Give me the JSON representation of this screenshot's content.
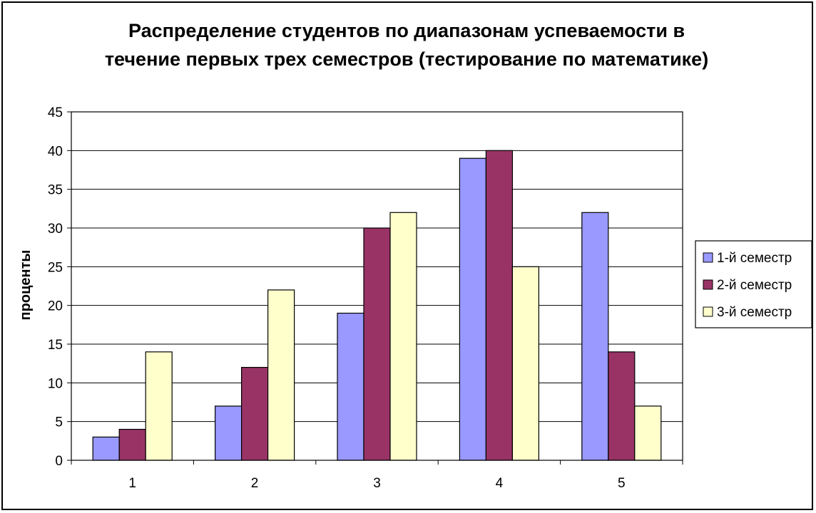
{
  "chart_data": {
    "type": "bar",
    "title_lines": [
      "Распределение студентов по диапазонам успеваемости в",
      "течение первых трех семестров (тестирование по математике)"
    ],
    "xlabel": "",
    "ylabel": "проценты",
    "categories": [
      "1",
      "2",
      "3",
      "4",
      "5"
    ],
    "ylim": [
      0,
      45
    ],
    "yticks": [
      "0",
      "5",
      "10",
      "15",
      "20",
      "25",
      "30",
      "35",
      "40",
      "45"
    ],
    "grid": true,
    "legend_position": "right",
    "series": [
      {
        "name": "1-й семестр",
        "color": "#9999ff",
        "values": [
          3,
          7,
          19,
          39,
          32
        ]
      },
      {
        "name": "2-й семестр",
        "color": "#993366",
        "values": [
          4,
          12,
          30,
          40,
          14
        ]
      },
      {
        "name": "3-й семестр",
        "color": "#ffffcc",
        "values": [
          14,
          22,
          32,
          25,
          7
        ]
      }
    ]
  }
}
